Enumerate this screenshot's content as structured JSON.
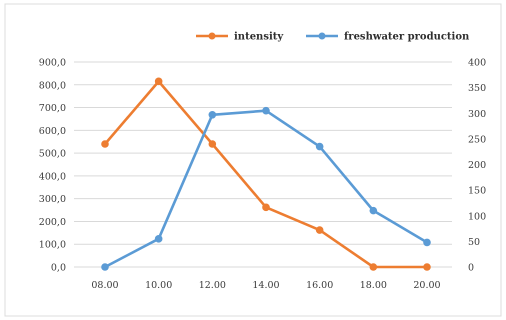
{
  "chart_data": {
    "type": "line",
    "categories": [
      "08.00",
      "10.00",
      "12.00",
      "14.00",
      "16.00",
      "18.00",
      "20.00"
    ],
    "series": [
      {
        "name": "intensity",
        "axis": "left",
        "color": "#ED7D31",
        "values": [
          540,
          815,
          540,
          262,
          162,
          0,
          0
        ]
      },
      {
        "name": "freshwater production",
        "axis": "right",
        "color": "#5B9BD5",
        "values": [
          0,
          55,
          297,
          305,
          235,
          110,
          48
        ]
      }
    ],
    "y_left": {
      "ylim": [
        0,
        900
      ],
      "ticks": [
        "0,0",
        "100,0",
        "200,0",
        "300,0",
        "400,0",
        "500,0",
        "600,0",
        "700,0",
        "800,0",
        "900,0"
      ]
    },
    "y_right": {
      "ylim": [
        0,
        400
      ],
      "ticks": [
        "0",
        "50",
        "100",
        "150",
        "200",
        "250",
        "300",
        "350",
        "400"
      ]
    },
    "grid": true,
    "legend_position": "top-right"
  }
}
